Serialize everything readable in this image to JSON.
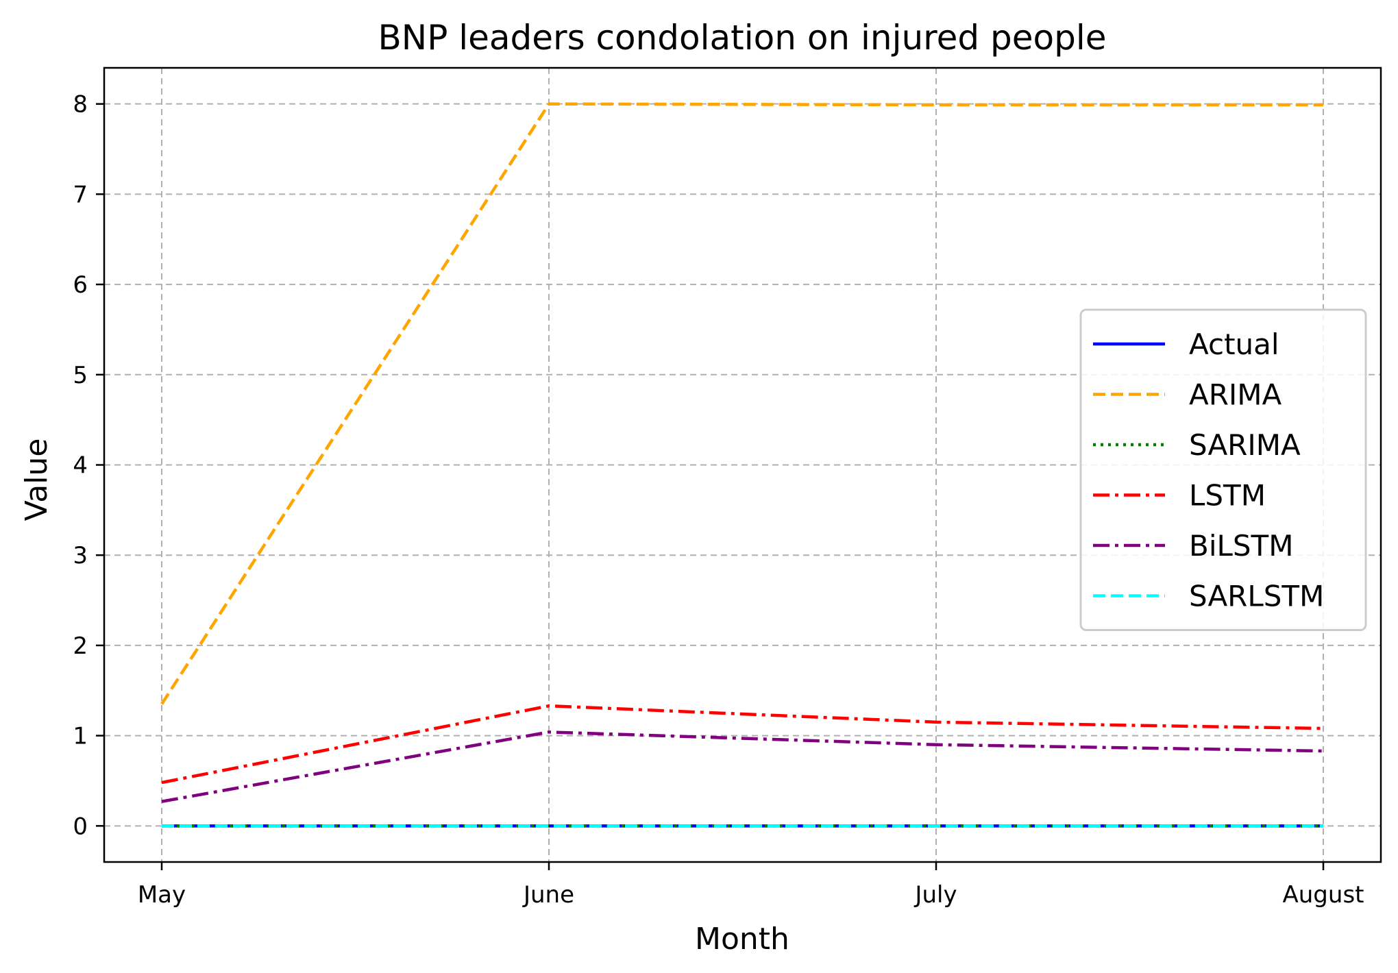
{
  "chart_data": {
    "type": "line",
    "title": "BNP leaders condolation on injured people",
    "xlabel": "Month",
    "ylabel": "Value",
    "categories": [
      "May",
      "June",
      "July",
      "August"
    ],
    "yticks": [
      0,
      1,
      2,
      3,
      4,
      5,
      6,
      7,
      8
    ],
    "ylim": [
      -0.4,
      8.4
    ],
    "grid": true,
    "legend_position": "center-right",
    "series": [
      {
        "name": "Actual",
        "values": [
          0,
          0,
          0,
          0
        ],
        "color": "#0000ff",
        "style": "solid"
      },
      {
        "name": "ARIMA",
        "values": [
          1.35,
          8.0,
          7.99,
          7.99
        ],
        "color": "#ffa500",
        "style": "dashed"
      },
      {
        "name": "SARIMA",
        "values": [
          0,
          0,
          0,
          0
        ],
        "color": "#008000",
        "style": "dotted"
      },
      {
        "name": "LSTM",
        "values": [
          0.48,
          1.33,
          1.15,
          1.08
        ],
        "color": "#ff0000",
        "style": "dashdot"
      },
      {
        "name": "BiLSTM",
        "values": [
          0.27,
          1.04,
          0.9,
          0.83
        ],
        "color": "#800080",
        "style": "dashdot"
      },
      {
        "name": "SARLSTM",
        "values": [
          0,
          0,
          0,
          0
        ],
        "color": "#00ffff",
        "style": "dashed"
      }
    ]
  }
}
